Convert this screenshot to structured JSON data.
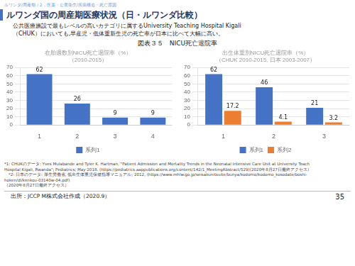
{
  "page_header": "ルワンダ/周産期 / 2．医薬・公衆衛生/疾病構造・死亡原因",
  "title": "ルワンダ国の周産期医療状況（日・ルワンダ比較）",
  "body_text": [
    "公共医療施設で最もレベルの高いカテゴリに属するUniversity Teaching Hospital Kigali",
    "（CHUK）においても,早産児・低体重新生児の死亡率が日本に比べて大幅に高い。"
  ],
  "figure_title": "図表３５　NICU死亡退院率",
  "chart_data": [
    {
      "type": "bar",
      "title": "在胎週数別NICU死亡退院率（%）",
      "subtitle": "（2010-2015）",
      "categories": [
        "1",
        "2",
        "3",
        "4"
      ],
      "series": [
        {
          "name": "系列1",
          "color": "#4472C4",
          "values": [
            62,
            26,
            9,
            9
          ]
        }
      ],
      "ylim": [
        0,
        70
      ],
      "yticks": [
        0,
        10,
        20,
        30,
        40,
        50,
        60,
        70
      ],
      "grid": true,
      "legend": "bottom",
      "data_labels": true
    },
    {
      "type": "bar",
      "title": "出生体重別NICU死亡退院率（%）",
      "subtitle": "（CHUK 2010-2015, 日本 2003-2007）",
      "categories": [
        "1",
        "2",
        "3"
      ],
      "series": [
        {
          "name": "系列1",
          "color": "#4472C4",
          "values": [
            62,
            46,
            21
          ]
        },
        {
          "name": "系列2",
          "color": "#ED7D31",
          "values": [
            17.2,
            4.1,
            3.2
          ]
        }
      ],
      "ylim": [
        0,
        70
      ],
      "yticks": [
        0,
        10,
        20,
        30,
        40,
        50,
        60,
        70
      ],
      "grid": true,
      "legend": "bottom",
      "data_labels": true
    }
  ],
  "footnotes": [
    "*1: CHUKのデータ: Yves Mulabande and Tyler K. Hartman, \"Patient Admission and Mortality Trends in the Neonatal Intensive Care Unit at University Teach",
    "Hospital Kigali, Rwanda\"; Pediatrics; May 2018. (https://pediatrics.aappublications.org/content/142/1_MeetingAbstract/529)(2020年8月27日最終アクセス)",
    "　*2: 日本のデータ: 厚生労働省, 低出生体重児保健指導マニュアル; 2012, (https://www.mhlw.go.jp/seisakunitsuite/bunya/kodomo/kodomo_kosodate/boshi-",
    "hoken/dl/kenkou-03140w-04.pdf)",
    "（2020年8月27日最終アクセス）"
  ],
  "source": "出所：JCCP M株式会社作成（2020.9）",
  "page_number": "35"
}
